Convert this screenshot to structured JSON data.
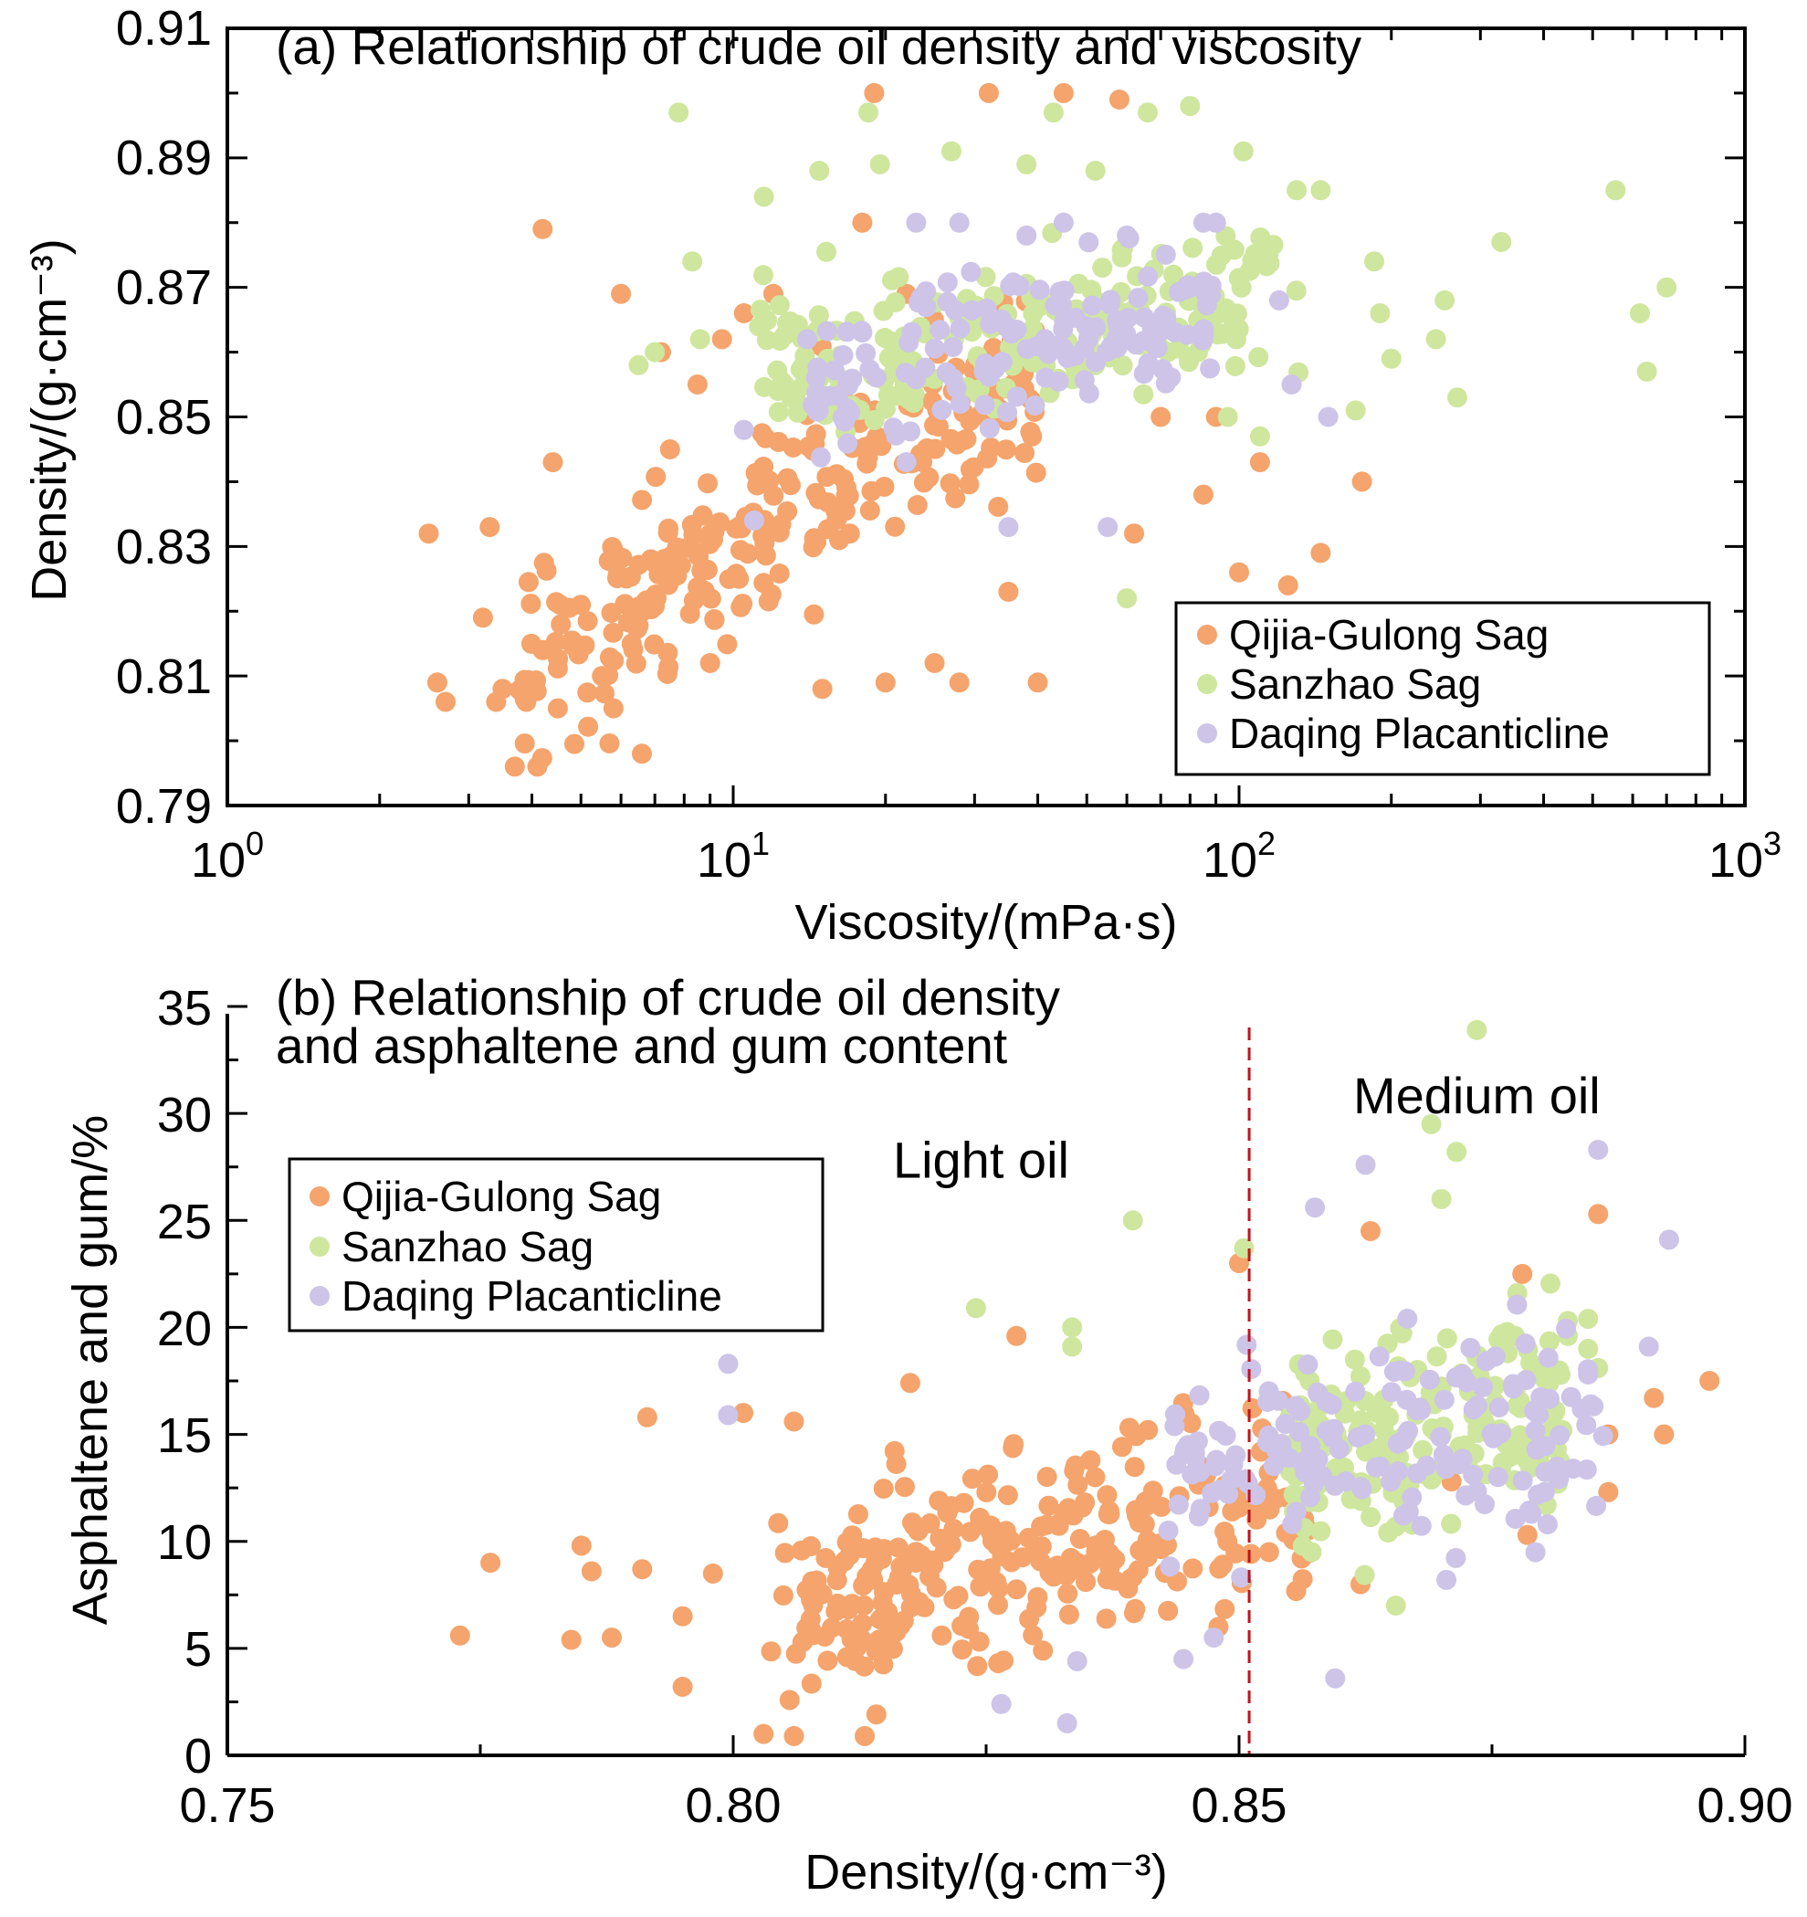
{
  "colors": {
    "qijia": "#F4A46C",
    "sanzhao": "#CFE69E",
    "daqing": "#CDC4E8",
    "divider": "#C0141C",
    "axis": "#000000"
  },
  "chart_data": [
    {
      "type": "scatter",
      "title": "(a) Relationship of crude oil density and viscosity",
      "xlabel": "Viscosity/(mPa·s)",
      "ylabel": "Density/(g·cm⁻³)",
      "xscale": "log",
      "xlim": [
        1,
        1000
      ],
      "ylim": [
        0.79,
        0.91
      ],
      "x_tick_labels": [
        {
          "base": "10",
          "exp": "0",
          "value": 1
        },
        {
          "base": "10",
          "exp": "1",
          "value": 10
        },
        {
          "base": "10",
          "exp": "2",
          "value": 100
        },
        {
          "base": "10",
          "exp": "3",
          "value": 1000
        }
      ],
      "y_ticks": [
        0.79,
        0.81,
        0.83,
        0.85,
        0.87,
        0.89,
        0.91
      ],
      "y_tick_labels": [
        "0.79",
        "0.81",
        "0.83",
        "0.85",
        "0.87",
        "0.89",
        "0.91"
      ],
      "legend_position": "bottom-right",
      "series": [
        {
          "name": "Qijia-Gulong Sag",
          "color": "#F4A46C",
          "anchors": [
            [
              2.5,
              0.832
            ],
            [
              2.6,
              0.809
            ],
            [
              2.7,
              0.806
            ],
            [
              3.2,
              0.819
            ],
            [
              3.3,
              0.833
            ],
            [
              3.4,
              0.806
            ],
            [
              3.5,
              0.808
            ],
            [
              3.7,
              0.796
            ],
            [
              3.9,
              0.806
            ],
            [
              4.1,
              0.796
            ],
            [
              4.2,
              0.814
            ],
            [
              4.2,
              0.879
            ],
            [
              4.4,
              0.843
            ],
            [
              4.5,
              0.805
            ],
            [
              5.0,
              0.821
            ],
            [
              5.5,
              0.81
            ],
            [
              5.8,
              0.805
            ],
            [
              6.0,
              0.869
            ],
            [
              6.3,
              0.815
            ],
            [
              6.6,
              0.798
            ],
            [
              7.2,
              0.86
            ],
            [
              7.5,
              0.845
            ],
            [
              8.5,
              0.855
            ],
            [
              9.0,
              0.812
            ],
            [
              9.5,
              0.862
            ],
            [
              10.5,
              0.866
            ],
            [
              12.0,
              0.869
            ],
            [
              15.0,
              0.808
            ],
            [
              17.0,
              0.832
            ],
            [
              18.0,
              0.88
            ],
            [
              19.0,
              0.9
            ],
            [
              20.0,
              0.809
            ],
            [
              22.0,
              0.869
            ],
            [
              25.0,
              0.812
            ],
            [
              28.0,
              0.809
            ],
            [
              32.0,
              0.9
            ],
            [
              35.0,
              0.823
            ],
            [
              40.0,
              0.809
            ],
            [
              45.0,
              0.9
            ],
            [
              50.0,
              0.86
            ],
            [
              58.0,
              0.899
            ],
            [
              62.0,
              0.832
            ],
            [
              70.0,
              0.85
            ],
            [
              85.0,
              0.838
            ],
            [
              90.0,
              0.85
            ],
            [
              100.0,
              0.826
            ],
            [
              110.0,
              0.843
            ],
            [
              125.0,
              0.824
            ],
            [
              145.0,
              0.829
            ],
            [
              175.0,
              0.84
            ]
          ],
          "cloud": {
            "count": 260,
            "x_log_range": [
              0.55,
              1.6
            ],
            "y_range": [
              0.807,
              0.86
            ],
            "trend": 0.045,
            "seed": 11
          }
        },
        {
          "name": "Sanzhao Sag",
          "color": "#CFE69E",
          "anchors": [
            [
              6.5,
              0.858
            ],
            [
              7.0,
              0.86
            ],
            [
              7.8,
              0.897
            ],
            [
              8.3,
              0.874
            ],
            [
              8.6,
              0.862
            ],
            [
              11.5,
              0.884
            ],
            [
              14.8,
              0.888
            ],
            [
              18.5,
              0.897
            ],
            [
              19.5,
              0.889
            ],
            [
              27.0,
              0.891
            ],
            [
              38.0,
              0.889
            ],
            [
              43.0,
              0.897
            ],
            [
              52.0,
              0.888
            ],
            [
              60.0,
              0.822
            ],
            [
              66.0,
              0.897
            ],
            [
              80.0,
              0.898
            ],
            [
              102.0,
              0.891
            ],
            [
              130.0,
              0.885
            ],
            [
              145.0,
              0.885
            ],
            [
              170.0,
              0.851
            ],
            [
              185.0,
              0.874
            ],
            [
              190.0,
              0.866
            ],
            [
              200.0,
              0.859
            ],
            [
              245.0,
              0.862
            ],
            [
              255.0,
              0.868
            ],
            [
              270.0,
              0.853
            ],
            [
              330.0,
              0.877
            ],
            [
              555.0,
              0.885
            ],
            [
              620.0,
              0.866
            ],
            [
              640.0,
              0.857
            ],
            [
              700.0,
              0.87
            ],
            [
              110.0,
              0.847
            ],
            [
              95.0,
              0.85
            ]
          ],
          "cloud": {
            "count": 210,
            "x_log_range": [
              1.05,
              2.12
            ],
            "y_range": [
              0.842,
              0.884
            ],
            "trend": 0.012,
            "seed": 23
          }
        },
        {
          "name": "Daqing Placanticline",
          "color": "#CDC4E8",
          "anchors": [
            [
              10.5,
              0.848
            ],
            [
              11.0,
              0.834
            ],
            [
              14.0,
              0.862
            ],
            [
              23.0,
              0.88
            ],
            [
              28.0,
              0.88
            ],
            [
              38.0,
              0.878
            ],
            [
              45.0,
              0.88
            ],
            [
              55.0,
              0.833
            ],
            [
              60.0,
              0.878
            ],
            [
              85.0,
              0.88
            ],
            [
              90.0,
              0.88
            ],
            [
              120.0,
              0.868
            ],
            [
              127.0,
              0.855
            ],
            [
              150.0,
              0.85
            ],
            [
              35.0,
              0.833
            ],
            [
              22.0,
              0.843
            ]
          ],
          "cloud": {
            "count": 150,
            "x_log_range": [
              1.15,
              1.95
            ],
            "y_range": [
              0.842,
              0.88
            ],
            "trend": 0.01,
            "seed": 37
          }
        }
      ]
    },
    {
      "type": "scatter",
      "title": "(b) Relationship of crude oil density",
      "title_line2": "and asphaltene and gum content",
      "xlabel": "Density/(g·cm⁻³)",
      "ylabel": "Asphaltene and gum/%",
      "xlim": [
        0.75,
        0.9
      ],
      "ylim": [
        0,
        35
      ],
      "x_ticks": [
        0.75,
        0.8,
        0.85,
        0.9
      ],
      "x_tick_labels": [
        "0.75",
        "0.80",
        "0.85",
        "0.90"
      ],
      "y_ticks": [
        0,
        5,
        10,
        15,
        20,
        25,
        30,
        35
      ],
      "y_tick_labels": [
        "0",
        "5",
        "10",
        "15",
        "20",
        "25",
        "30",
        "35"
      ],
      "divider_x": 0.851,
      "regions": [
        {
          "label": "Light oil",
          "x": 0.8245,
          "y": 27.0
        },
        {
          "label": "Medium oil",
          "x": 0.8735,
          "y": 30.0
        }
      ],
      "legend_position": "top-left",
      "series": [
        {
          "name": "Qijia-Gulong Sag",
          "color": "#F4A46C",
          "anchors": [
            [
              0.773,
              5.6
            ],
            [
              0.776,
              9.0
            ],
            [
              0.784,
              5.4
            ],
            [
              0.785,
              9.8
            ],
            [
              0.786,
              8.6
            ],
            [
              0.788,
              5.5
            ],
            [
              0.791,
              8.7
            ],
            [
              0.7915,
              15.8
            ],
            [
              0.795,
              6.5
            ],
            [
              0.795,
              3.2
            ],
            [
              0.798,
              8.5
            ],
            [
              0.801,
              16.0
            ],
            [
              0.803,
              1.0
            ],
            [
              0.806,
              15.6
            ],
            [
              0.806,
              0.9
            ],
            [
              0.813,
              0.9
            ],
            [
              0.8175,
              17.4
            ],
            [
              0.828,
              19.6
            ],
            [
              0.85,
              23.0
            ],
            [
              0.863,
              24.5
            ],
            [
              0.878,
              22.5
            ],
            [
              0.8785,
              10.3
            ],
            [
              0.8855,
              25.3
            ],
            [
              0.8865,
              15.0
            ],
            [
              0.8865,
              12.3
            ],
            [
              0.891,
              16.7
            ],
            [
              0.892,
              15.0
            ],
            [
              0.8965,
              17.5
            ],
            [
              0.862,
              8.0
            ],
            [
              0.871,
              12.8
            ]
          ],
          "cloud": {
            "count": 280,
            "x_range": [
              0.803,
              0.857
            ],
            "y_range": [
              1.5,
              17.5
            ],
            "trend": 5.5,
            "seed": 53
          }
        },
        {
          "name": "Sanzhao Sag",
          "color": "#CFE69E",
          "anchors": [
            [
              0.824,
              20.9
            ],
            [
              0.8335,
              20.0
            ],
            [
              0.8335,
              19.1
            ],
            [
              0.8395,
              25.0
            ],
            [
              0.8505,
              23.7
            ],
            [
              0.8655,
              7.0
            ],
            [
              0.869,
              29.5
            ],
            [
              0.87,
              26.0
            ],
            [
              0.8715,
              28.2
            ],
            [
              0.8735,
              33.9
            ],
            [
              0.8775,
              21.6
            ],
            [
              0.8815,
              12.7
            ],
            [
              0.8825,
              20.3
            ],
            [
              0.8825,
              19.6
            ],
            [
              0.8845,
              20.4
            ],
            [
              0.8845,
              19.0
            ],
            [
              0.8855,
              18.1
            ]
          ],
          "cloud": {
            "count": 190,
            "x_range": [
              0.855,
              0.882
            ],
            "y_range": [
              8.0,
              22.5
            ],
            "trend": 2.5,
            "seed": 67
          }
        },
        {
          "name": "Daqing Placanticline",
          "color": "#CDC4E8",
          "anchors": [
            [
              0.7995,
              18.3
            ],
            [
              0.7995,
              15.9
            ],
            [
              0.8265,
              2.4
            ],
            [
              0.833,
              1.5
            ],
            [
              0.834,
              4.4
            ],
            [
              0.8445,
              4.5
            ],
            [
              0.8475,
              5.5
            ],
            [
              0.8595,
              3.6
            ],
            [
              0.8575,
              25.6
            ],
            [
              0.8625,
              27.6
            ],
            [
              0.8705,
              8.2
            ],
            [
              0.8855,
              28.3
            ],
            [
              0.8905,
              19.1
            ],
            [
              0.8925,
              24.1
            ],
            [
              0.8805,
              10.8
            ],
            [
              0.8845,
              17.8
            ]
          ],
          "cloud": {
            "count": 160,
            "x_range": [
              0.842,
              0.886
            ],
            "y_range": [
              7.0,
              22.5
            ],
            "trend": 2.0,
            "seed": 79
          }
        }
      ]
    }
  ]
}
